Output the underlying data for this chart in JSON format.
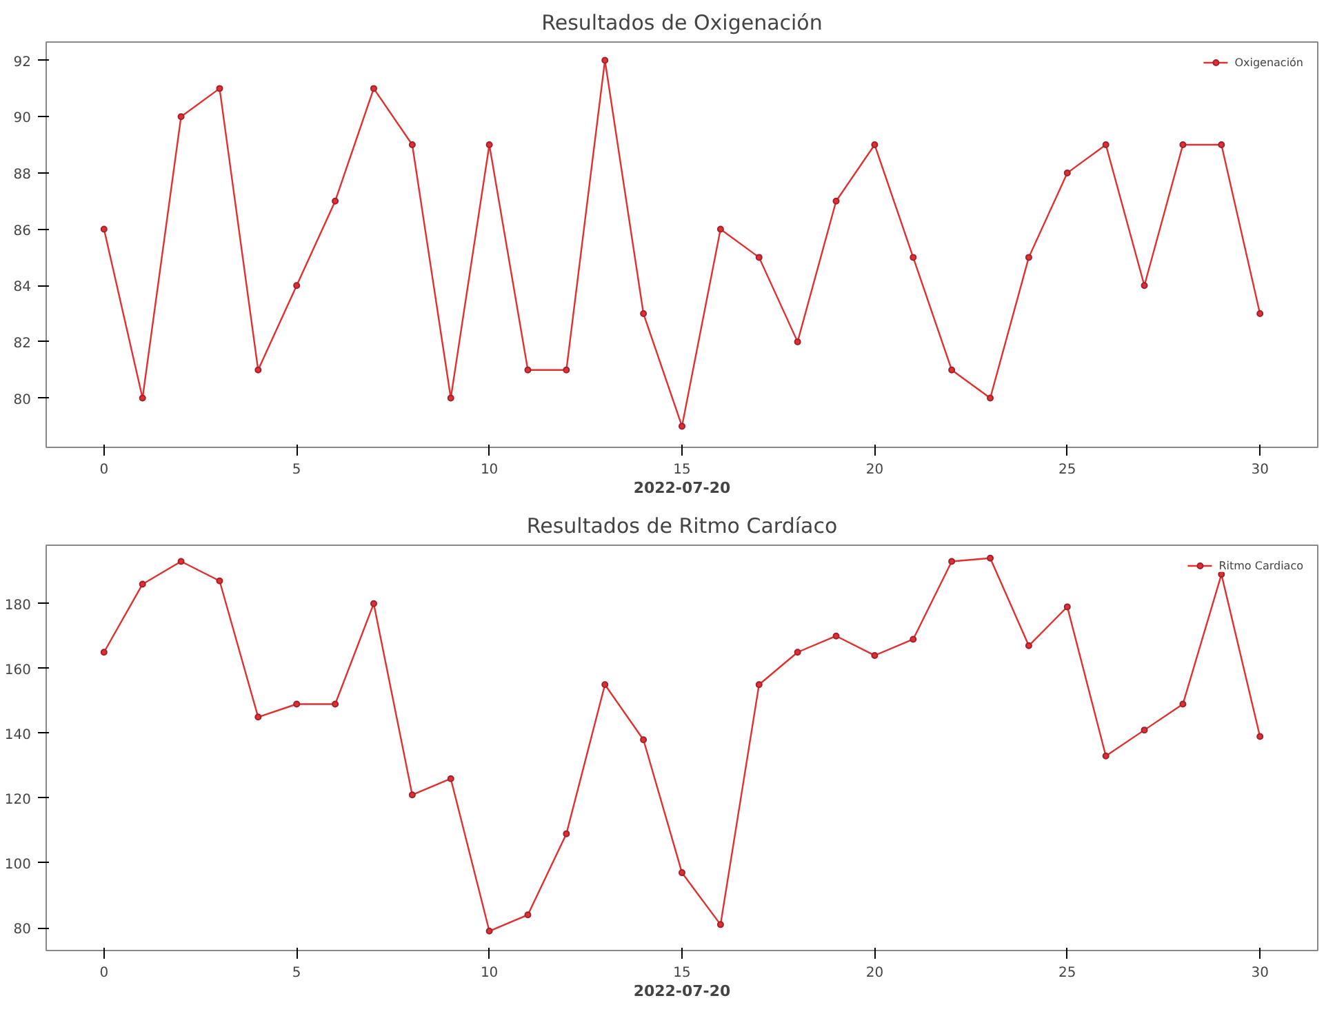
{
  "chart_data": [
    {
      "type": "line",
      "title": "Resultados de Oxigenación",
      "xlabel": "2022-07-20",
      "x": [
        0,
        1,
        2,
        3,
        4,
        5,
        6,
        7,
        8,
        9,
        10,
        11,
        12,
        13,
        14,
        15,
        16,
        17,
        18,
        19,
        20,
        21,
        22,
        23,
        24,
        25,
        26,
        27,
        28,
        29,
        30
      ],
      "series": [
        {
          "name": "Oxigenación",
          "color": "#e03030",
          "values": [
            86,
            80,
            90,
            91,
            81,
            84,
            87,
            91,
            89,
            80,
            89,
            81,
            81,
            92,
            83,
            79,
            86,
            85,
            82,
            87,
            89,
            85,
            81,
            80,
            85,
            88,
            89,
            84,
            89,
            89,
            83
          ]
        }
      ],
      "xlim": [
        -1.5,
        31.5
      ],
      "xticks": [
        0,
        5,
        10,
        15,
        20,
        25,
        30
      ],
      "ylim": [
        78.25,
        92.65
      ],
      "yticks": [
        80,
        82,
        84,
        86,
        88,
        90,
        92
      ],
      "grid": false,
      "legend": "top right",
      "marker": "circle",
      "line_style": "solid"
    },
    {
      "type": "line",
      "title": "Resultados de Ritmo Cardíaco",
      "xlabel": "2022-07-20",
      "x": [
        0,
        1,
        2,
        3,
        4,
        5,
        6,
        7,
        8,
        9,
        10,
        11,
        12,
        13,
        14,
        15,
        16,
        17,
        18,
        19,
        20,
        21,
        22,
        23,
        24,
        25,
        26,
        27,
        28,
        29,
        30
      ],
      "series": [
        {
          "name": "Ritmo Cardiaco",
          "color": "#e03030",
          "values": [
            165,
            186,
            193,
            187,
            145,
            149,
            149,
            180,
            121,
            126,
            79,
            84,
            109,
            155,
            138,
            97,
            81,
            155,
            165,
            170,
            164,
            169,
            193,
            194,
            167,
            179,
            133,
            141,
            149,
            189,
            139
          ]
        }
      ],
      "xlim": [
        -1.5,
        31.5
      ],
      "xticks": [
        0,
        5,
        10,
        15,
        20,
        25,
        30
      ],
      "ylim": [
        73,
        198
      ],
      "yticks": [
        80,
        100,
        120,
        140,
        160,
        180
      ],
      "grid": false,
      "legend": "top right",
      "marker": "circle",
      "line_style": "solid"
    }
  ]
}
